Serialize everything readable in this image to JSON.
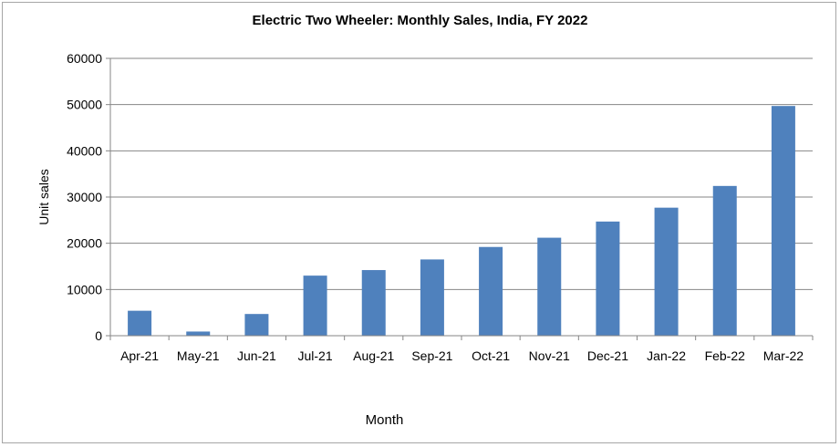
{
  "chart_data": {
    "type": "bar",
    "title": "Electric Two Wheeler: Monthly Sales, India, FY 2022",
    "xlabel": "Month",
    "ylabel": "Unit sales",
    "categories": [
      "Apr-21",
      "May-21",
      "Jun-21",
      "Jul-21",
      "Aug-21",
      "Sep-21",
      "Oct-21",
      "Nov-21",
      "Dec-21",
      "Jan-22",
      "Feb-22",
      "Mar-22"
    ],
    "values": [
      5400,
      900,
      4700,
      13000,
      14200,
      16500,
      19200,
      21200,
      24700,
      27700,
      32400,
      49700
    ],
    "ylim": [
      0,
      60000
    ],
    "yticks": [
      0,
      10000,
      20000,
      30000,
      40000,
      50000,
      60000
    ],
    "grid": true,
    "legend": "none",
    "bar_color": "#4f81bd",
    "grid_color": "#868686"
  }
}
